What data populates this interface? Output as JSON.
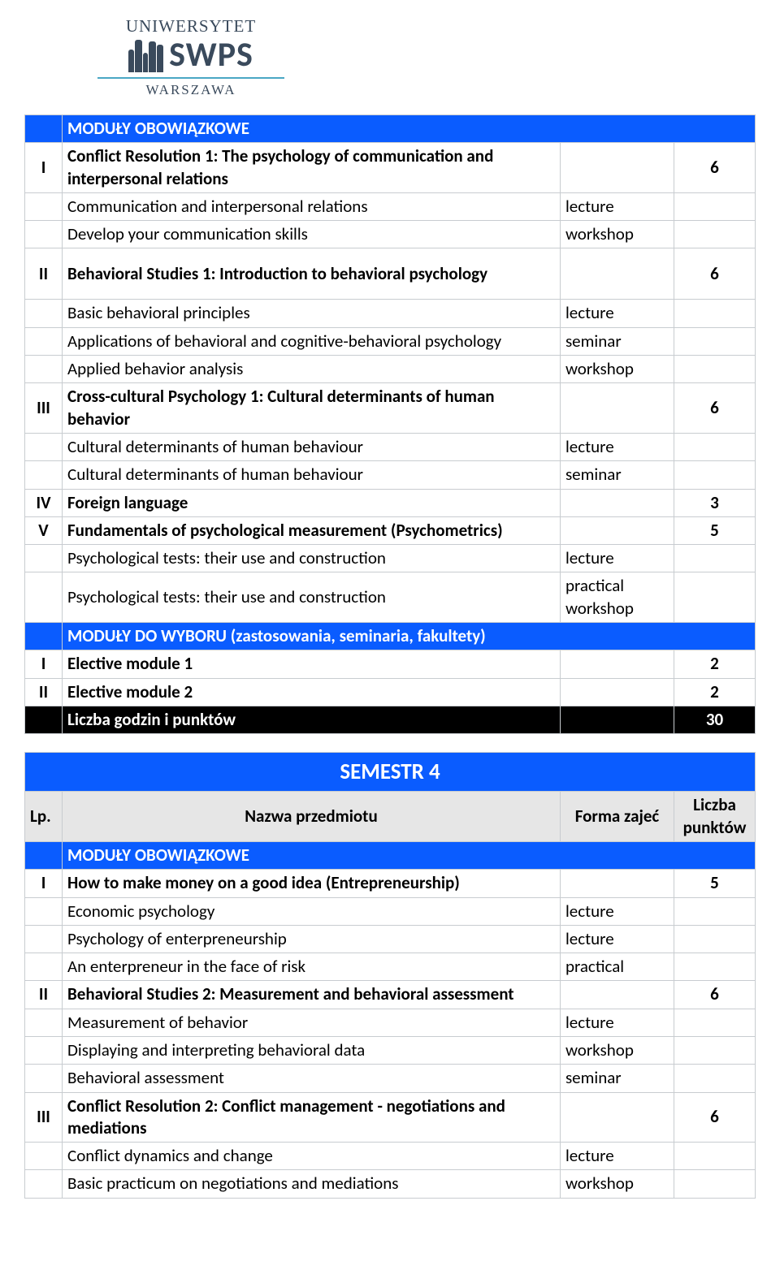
{
  "logo": {
    "top": "UNIWERSYTET",
    "main": "SWPS",
    "bottom": "WARSZAWA"
  },
  "colors": {
    "blue_header": "#0a5cff",
    "black_row": "#000000",
    "grey_row": "#e6e6e6",
    "border": "#c8ccd0",
    "logo_navy": "#3a4a5c",
    "logo_teal": "#4aa7c4"
  },
  "table1": {
    "header1": "MODUŁY OBOWIĄZKOWE",
    "rows": [
      {
        "num": "I",
        "name": "Conflict Resolution 1: The psychology of communication and interpersonal relations",
        "form": "",
        "pts": "6",
        "bold": true
      },
      {
        "num": "",
        "name": "Communication and interpersonal relations",
        "form": "lecture",
        "pts": "",
        "bold": false
      },
      {
        "num": "",
        "name": "Develop your communication skills",
        "form": "workshop",
        "pts": "",
        "bold": false
      },
      {
        "num": "II",
        "name": "Behavioral Studies 1: Introduction to behavioral psychology",
        "form": "",
        "pts": "6",
        "bold": true,
        "tall": true
      },
      {
        "num": "",
        "name": "Basic behavioral principles",
        "form": "lecture",
        "pts": "",
        "bold": false
      },
      {
        "num": "",
        "name": "Applications of behavioral and cognitive-behavioral psychology",
        "form": "seminar",
        "pts": "",
        "bold": false
      },
      {
        "num": "",
        "name": "Applied behavior analysis",
        "form": "workshop",
        "pts": "",
        "bold": false
      },
      {
        "num": "III",
        "name": "Cross-cultural Psychology 1: Cultural determinants of human behavior",
        "form": "",
        "pts": "6",
        "bold": true
      },
      {
        "num": "",
        "name": "Cultural determinants of human behaviour",
        "form": "lecture",
        "pts": "",
        "bold": false
      },
      {
        "num": "",
        "name": "Cultural determinants of human behaviour",
        "form": "seminar",
        "pts": "",
        "bold": false
      },
      {
        "num": "IV",
        "name": "Foreign language",
        "form": "",
        "pts": "3",
        "bold": true
      },
      {
        "num": "V",
        "name": "Fundamentals of psychological measurement (Psychometrics)",
        "form": "",
        "pts": "5",
        "bold": true
      },
      {
        "num": "",
        "name": "Psychological tests: their use and construction",
        "form": "lecture",
        "pts": "",
        "bold": false
      },
      {
        "num": "",
        "name": "Psychological tests: their use and construction",
        "form": "practical workshop",
        "pts": "",
        "bold": false
      }
    ],
    "header2": "MODUŁY DO WYBORU (zastosowania, seminaria, fakultety)",
    "electives": [
      {
        "num": "I",
        "name": "Elective module 1",
        "form": "",
        "pts": "2",
        "bold": true
      },
      {
        "num": "II",
        "name": "Elective module 2",
        "form": "",
        "pts": "2",
        "bold": true
      }
    ],
    "total_label": "Liczba godzin i punktów",
    "total_pts": "30"
  },
  "table2": {
    "semester_title": "SEMESTR 4",
    "columns": {
      "lp": "Lp.",
      "name": "Nazwa przedmiotu",
      "form": "Forma zajeć",
      "pts": "Liczba punktów"
    },
    "header1": "MODUŁY OBOWIĄZKOWE",
    "rows": [
      {
        "num": "I",
        "name": "How to make money on a good idea (Entrepreneurship)",
        "form": "",
        "pts": "5",
        "bold": true
      },
      {
        "num": "",
        "name": "Economic psychology",
        "form": "lecture",
        "pts": "",
        "bold": false
      },
      {
        "num": "",
        "name": "Psychology of enterpreneurship",
        "form": "lecture",
        "pts": "",
        "bold": false
      },
      {
        "num": "",
        "name": "An enterpreneur in the face of risk",
        "form": "practical",
        "pts": "",
        "bold": false
      },
      {
        "num": "II",
        "name": "Behavioral Studies 2: Measurement and behavioral assessment",
        "form": "",
        "pts": "6",
        "bold": true
      },
      {
        "num": "",
        "name": "Measurement of behavior",
        "form": "lecture",
        "pts": "",
        "bold": false
      },
      {
        "num": "",
        "name": "Displaying and interpreting behavioral data",
        "form": "workshop",
        "pts": "",
        "bold": false
      },
      {
        "num": "",
        "name": "Behavioral assessment",
        "form": "seminar",
        "pts": "",
        "bold": false
      },
      {
        "num": "III",
        "name": "Conflict Resolution 2: Conflict management - negotiations and mediations",
        "form": "",
        "pts": "6",
        "bold": true
      },
      {
        "num": "",
        "name": "Conflict dynamics and change",
        "form": "lecture",
        "pts": "",
        "bold": false
      },
      {
        "num": "",
        "name": "Basic practicum on negotiations and mediations",
        "form": "workshop",
        "pts": "",
        "bold": false
      }
    ]
  }
}
